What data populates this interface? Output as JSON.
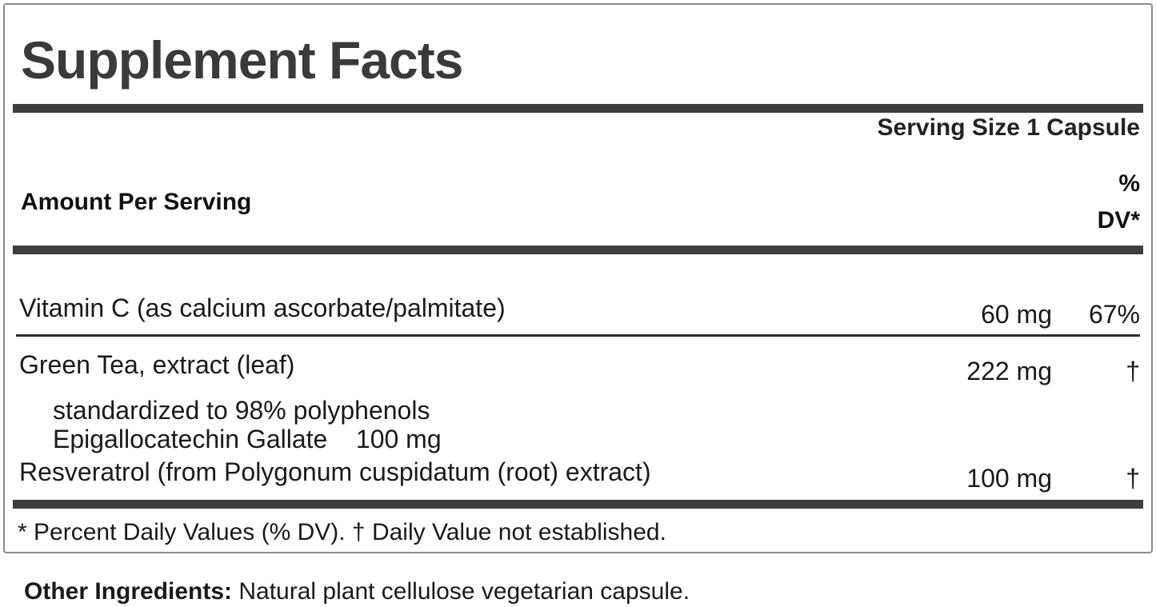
{
  "panel": {
    "title": "Supplement Facts",
    "serving_size": "Serving Size 1 Capsule",
    "header": {
      "amount_label": "Amount Per Serving",
      "dv_line1": "%",
      "dv_line2": "DV*"
    },
    "rows": [
      {
        "name": "Vitamin C (as calcium ascorbate/palmitate)",
        "amount": "60 mg",
        "dv": "67%"
      },
      {
        "name": "Green Tea, extract (leaf)",
        "amount": "222 mg",
        "dv": "†",
        "sub": [
          "standardized to 98% polyphenols",
          "Epigallocatechin Gallate    100 mg"
        ]
      },
      {
        "name": "Resveratrol (from Polygonum cuspidatum (root) extract)",
        "amount": "100 mg",
        "dv": "†"
      }
    ],
    "footnote": "* Percent Daily Values (% DV). † Daily Value not established."
  },
  "other_ingredients": {
    "label": "Other Ingredients:",
    "text": " Natural plant cellulose vegetarian capsule."
  },
  "colors": {
    "text": "#1a1a1a",
    "title": "#3a3a3a",
    "bar": "#3d3d3d",
    "border": "#8c8c8c",
    "background": "#ffffff"
  }
}
